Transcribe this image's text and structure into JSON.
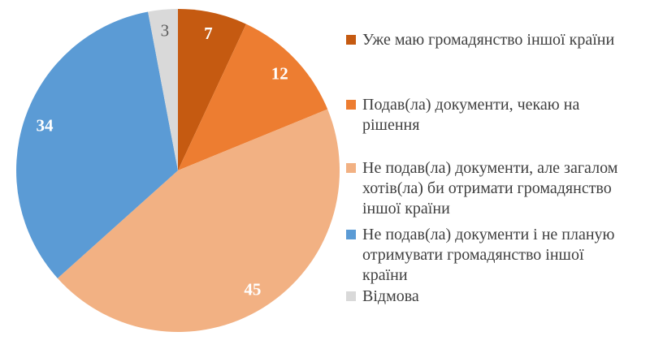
{
  "chart_data": {
    "type": "pie",
    "title": "",
    "categories": [
      "Уже маю громадянство іншої країни",
      "Подав(ла) документи, чекаю на рішення",
      "Не подав(ла) документи, але загалом хотів(ла) би отримати громадянство іншої країни",
      "Не подав(ла) документи і не планую отримувати громадянство іншої країни",
      "Відмова"
    ],
    "values": [
      7,
      12,
      45,
      34,
      3
    ],
    "value_labels": [
      "7",
      "12",
      "45",
      "34",
      "3"
    ],
    "colors": [
      "#C55A11",
      "#ED7D31",
      "#F2B183",
      "#5B9BD5",
      "#D9D9D9"
    ],
    "value_label_colors": [
      "#FFFFFF",
      "#FFFFFF",
      "#FFFFFF",
      "#FFFFFF",
      "#595959"
    ],
    "value_label_weights": [
      "bold",
      "bold",
      "bold",
      "bold",
      "normal"
    ],
    "start_angle_deg": -90,
    "direction": "clockwise",
    "legend_position": "right",
    "background_color": "#FFFFFF",
    "legend_text_color": "#404040"
  },
  "legend": {
    "items": [
      {
        "label": "Уже маю громадянство іншої країни"
      },
      {
        "label": "Подав(ла) документи, чекаю на\nрішення"
      },
      {
        "label": "Не подав(ла) документи, але загалом\nхотів(ла) би отримати громадянство\nіншої країни"
      },
      {
        "label": "Не подав(ла) документи і не планую\nотримувати громадянство іншої\nкраїни"
      },
      {
        "label": "Відмова"
      }
    ]
  }
}
